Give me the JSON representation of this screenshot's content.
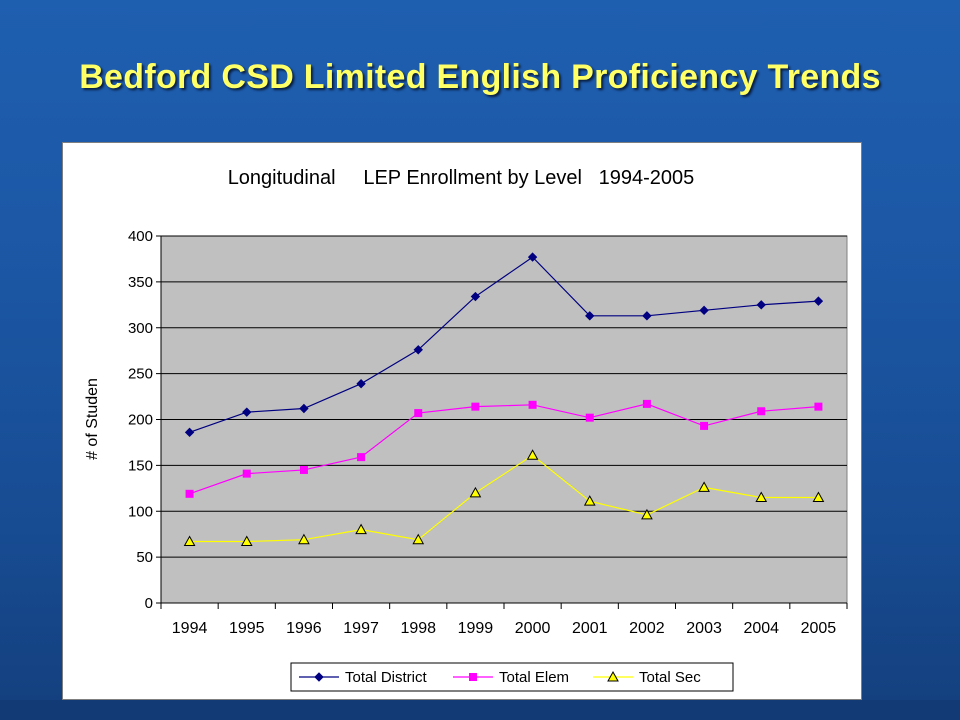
{
  "slide": {
    "title": "Bedford CSD  Limited English Proficiency Trends"
  },
  "colors": {
    "background": "#1b56a3",
    "title": "#ffff66",
    "plot_area": "#c0c0c0"
  },
  "chart_data": {
    "type": "line",
    "title": "Longitudinal     LEP Enrollment by Level   1994-2005",
    "xlabel": "",
    "ylabel": "# of Studen",
    "categories": [
      "1994",
      "1995",
      "1996",
      "1997",
      "1998",
      "1999",
      "2000",
      "2001",
      "2002",
      "2003",
      "2004",
      "2005"
    ],
    "ylim": [
      0,
      400
    ],
    "yticks": [
      0,
      50,
      100,
      150,
      200,
      250,
      300,
      350,
      400
    ],
    "grid": true,
    "legend_position": "bottom",
    "series": [
      {
        "name": "Total District",
        "color": "#000080",
        "marker": "diamond",
        "values": [
          186,
          208,
          212,
          239,
          276,
          334,
          377,
          313,
          313,
          319,
          325,
          329
        ]
      },
      {
        "name": "Total Elem",
        "color": "#ff00ff",
        "marker": "square",
        "values": [
          119,
          141,
          145,
          159,
          207,
          214,
          216,
          202,
          217,
          193,
          209,
          214
        ]
      },
      {
        "name": "Total Sec",
        "color": "#ffff00",
        "marker": "triangle",
        "values": [
          67,
          67,
          69,
          80,
          69,
          120,
          161,
          111,
          96,
          126,
          115,
          115
        ]
      }
    ]
  }
}
